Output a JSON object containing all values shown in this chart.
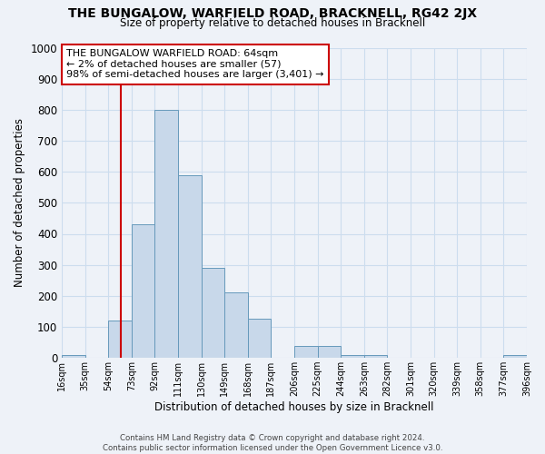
{
  "title": "THE BUNGALOW, WARFIELD ROAD, BRACKNELL, RG42 2JX",
  "subtitle": "Size of property relative to detached houses in Bracknell",
  "xlabel": "Distribution of detached houses by size in Bracknell",
  "ylabel": "Number of detached properties",
  "bin_edges": [
    16,
    35,
    54,
    73,
    92,
    111,
    130,
    149,
    168,
    187,
    206,
    225,
    244,
    263,
    282,
    301,
    320,
    339,
    358,
    377,
    396
  ],
  "bar_heights": [
    10,
    0,
    120,
    430,
    800,
    590,
    290,
    210,
    125,
    0,
    40,
    40,
    10,
    10,
    0,
    0,
    0,
    0,
    0,
    10
  ],
  "bar_color": "#c8d8ea",
  "bar_edgecolor": "#6699bb",
  "xlim": [
    16,
    396
  ],
  "ylim": [
    0,
    1000
  ],
  "yticks": [
    0,
    100,
    200,
    300,
    400,
    500,
    600,
    700,
    800,
    900,
    1000
  ],
  "xtick_labels": [
    "16sqm",
    "35sqm",
    "54sqm",
    "73sqm",
    "92sqm",
    "111sqm",
    "130sqm",
    "149sqm",
    "168sqm",
    "187sqm",
    "206sqm",
    "225sqm",
    "244sqm",
    "263sqm",
    "282sqm",
    "301sqm",
    "320sqm",
    "339sqm",
    "358sqm",
    "377sqm",
    "396sqm"
  ],
  "xtick_positions": [
    16,
    35,
    54,
    73,
    92,
    111,
    130,
    149,
    168,
    187,
    206,
    225,
    244,
    263,
    282,
    301,
    320,
    339,
    358,
    377,
    396
  ],
  "vline_x": 64,
  "vline_color": "#cc0000",
  "annotation_text": "THE BUNGALOW WARFIELD ROAD: 64sqm\n← 2% of detached houses are smaller (57)\n98% of semi-detached houses are larger (3,401) →",
  "annotation_box_edgecolor": "#cc0000",
  "annotation_box_facecolor": "#ffffff",
  "grid_color": "#ccddee",
  "background_color": "#eef2f8",
  "footer_line1": "Contains HM Land Registry data © Crown copyright and database right 2024.",
  "footer_line2": "Contains public sector information licensed under the Open Government Licence v3.0."
}
